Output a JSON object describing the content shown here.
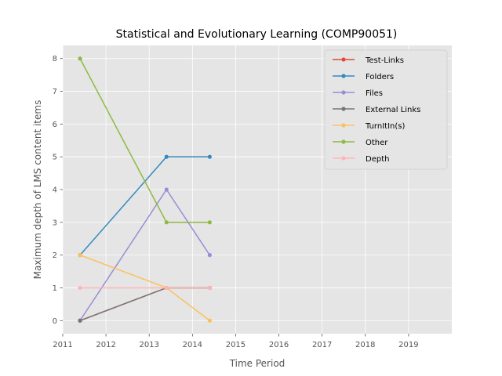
{
  "chart_data": {
    "type": "line",
    "title": "Statistical and Evolutionary Learning (COMP90051)",
    "xlabel": "Time Period",
    "ylabel": "Maximum depth of LMS content items",
    "xlim": [
      2011,
      2020
    ],
    "ylim": [
      -0.4,
      8.4
    ],
    "xticks": [
      2011,
      2012,
      2013,
      2014,
      2015,
      2016,
      2017,
      2018,
      2019
    ],
    "yticks": [
      0,
      1,
      2,
      3,
      4,
      5,
      6,
      7,
      8
    ],
    "grid": true,
    "legend_position": "top-right",
    "x": [
      2011.4,
      2013.4,
      2014.4
    ],
    "series": [
      {
        "name": "Test-Links",
        "color": "#e24a33",
        "values": [
          0,
          1,
          1
        ]
      },
      {
        "name": "Folders",
        "color": "#348abd",
        "values": [
          2,
          5,
          5
        ]
      },
      {
        "name": "Files",
        "color": "#988ed5",
        "values": [
          0,
          4,
          2
        ]
      },
      {
        "name": "External Links",
        "color": "#777777",
        "values": [
          0,
          1,
          1
        ]
      },
      {
        "name": "TurnItIn(s)",
        "color": "#fbc15e",
        "values": [
          2,
          1,
          0
        ]
      },
      {
        "name": "Other",
        "color": "#8eba42",
        "values": [
          8,
          3,
          3
        ]
      },
      {
        "name": "Depth",
        "color": "#ffb5b8",
        "values": [
          1,
          1,
          1
        ]
      }
    ]
  },
  "colors": {
    "plot_background": "#e5e5e5",
    "grid": "#ffffff"
  }
}
